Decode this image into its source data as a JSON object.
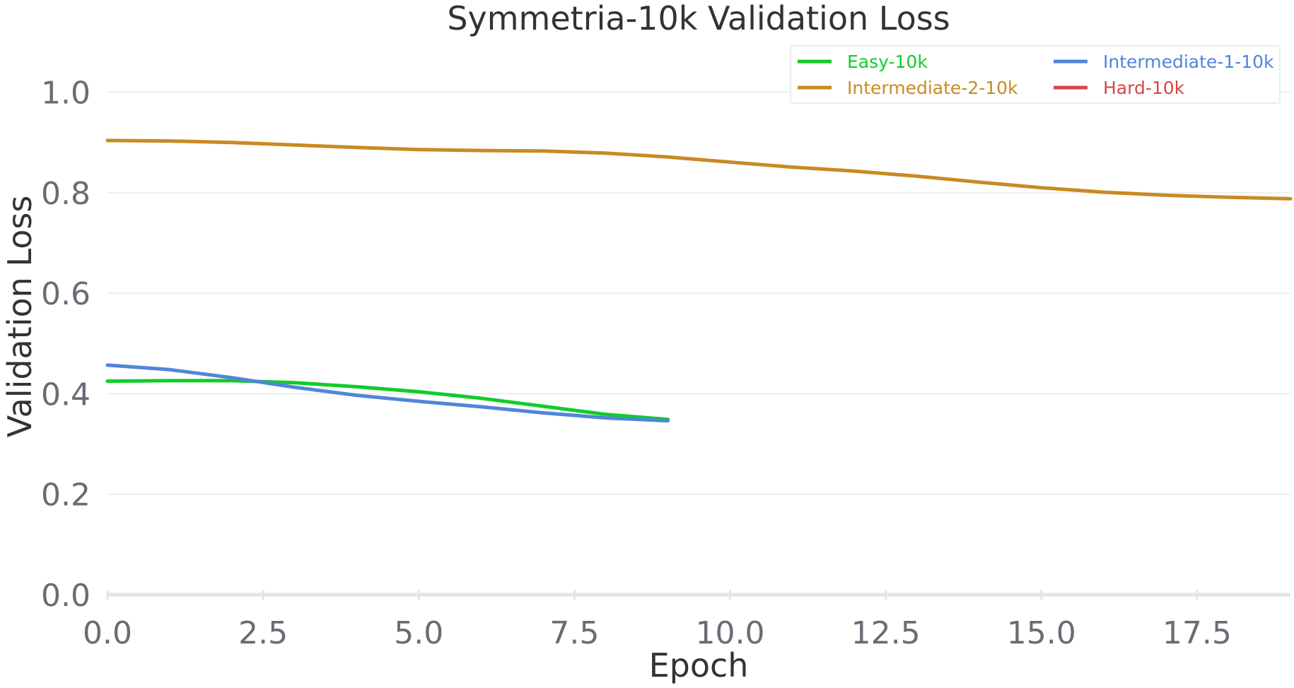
{
  "chart_data": {
    "type": "line",
    "title": "Symmetria-10k Validation Loss",
    "xlabel": "Epoch",
    "ylabel": "Validation Loss",
    "xlim": [
      0,
      19
    ],
    "ylim": [
      0,
      1.05
    ],
    "xticks": [
      "0.0",
      "2.5",
      "5.0",
      "7.5",
      "10.0",
      "12.5",
      "15.0",
      "17.5"
    ],
    "yticks": [
      "0.0",
      "0.2",
      "0.4",
      "0.6",
      "0.8",
      "1.0"
    ],
    "grid": "horizontal",
    "legend_position": "top-right",
    "series": [
      {
        "name": "Easy-10k",
        "color": "#11cc2a",
        "x": [
          0,
          1,
          2,
          3,
          4,
          5,
          6,
          7,
          8,
          9
        ],
        "y": [
          0.425,
          0.426,
          0.426,
          0.422,
          0.414,
          0.404,
          0.391,
          0.375,
          0.359,
          0.349
        ]
      },
      {
        "name": "Intermediate-1-10k",
        "color": "#5185d9",
        "x": [
          0,
          1,
          2,
          3,
          4,
          5,
          6,
          7,
          8,
          9
        ],
        "y": [
          0.457,
          0.448,
          0.432,
          0.413,
          0.397,
          0.385,
          0.374,
          0.362,
          0.352,
          0.346
        ]
      },
      {
        "name": "Intermediate-2-10k",
        "color": "#c98a22",
        "x": [
          0,
          1,
          2,
          3,
          4,
          5,
          6,
          7,
          8,
          9,
          10,
          11,
          12,
          13,
          14,
          15,
          16,
          17,
          18,
          19
        ],
        "y": [
          0.904,
          0.903,
          0.9,
          0.895,
          0.89,
          0.886,
          0.884,
          0.883,
          0.879,
          0.871,
          0.861,
          0.851,
          0.843,
          0.833,
          0.821,
          0.81,
          0.801,
          0.795,
          0.791,
          0.788
        ]
      },
      {
        "name": "Hard-10k",
        "color": "#d94545",
        "x": [],
        "y": []
      }
    ]
  }
}
